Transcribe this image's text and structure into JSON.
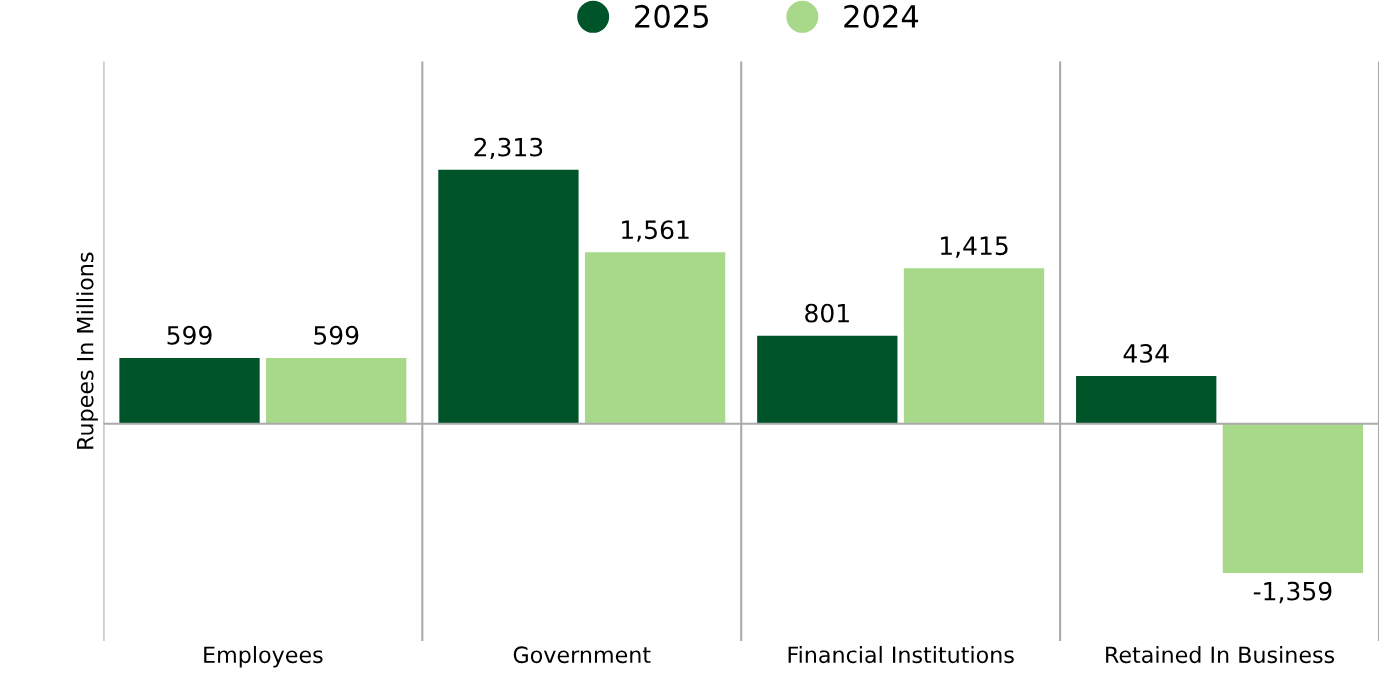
{
  "chart_data": {
    "type": "bar",
    "ylabel": "Rupees In Millions",
    "categories": [
      "Employees",
      "Government",
      "Financial Institutions",
      "Retained In Business"
    ],
    "series": [
      {
        "name": "2025",
        "color": "#00542a",
        "values": [
          599,
          2313,
          801,
          434
        ],
        "value_labels": [
          "599",
          "2,313",
          "801",
          "434"
        ]
      },
      {
        "name": "2024",
        "color": "#a8d88a",
        "values": [
          599,
          1561,
          1415,
          -1359
        ],
        "value_labels": [
          "599",
          "1,561",
          "1,415",
          "-1,359"
        ]
      }
    ],
    "ylim": [
      -1980,
      3300
    ],
    "tick_labels": "x",
    "grid": "x",
    "legend": "top"
  }
}
